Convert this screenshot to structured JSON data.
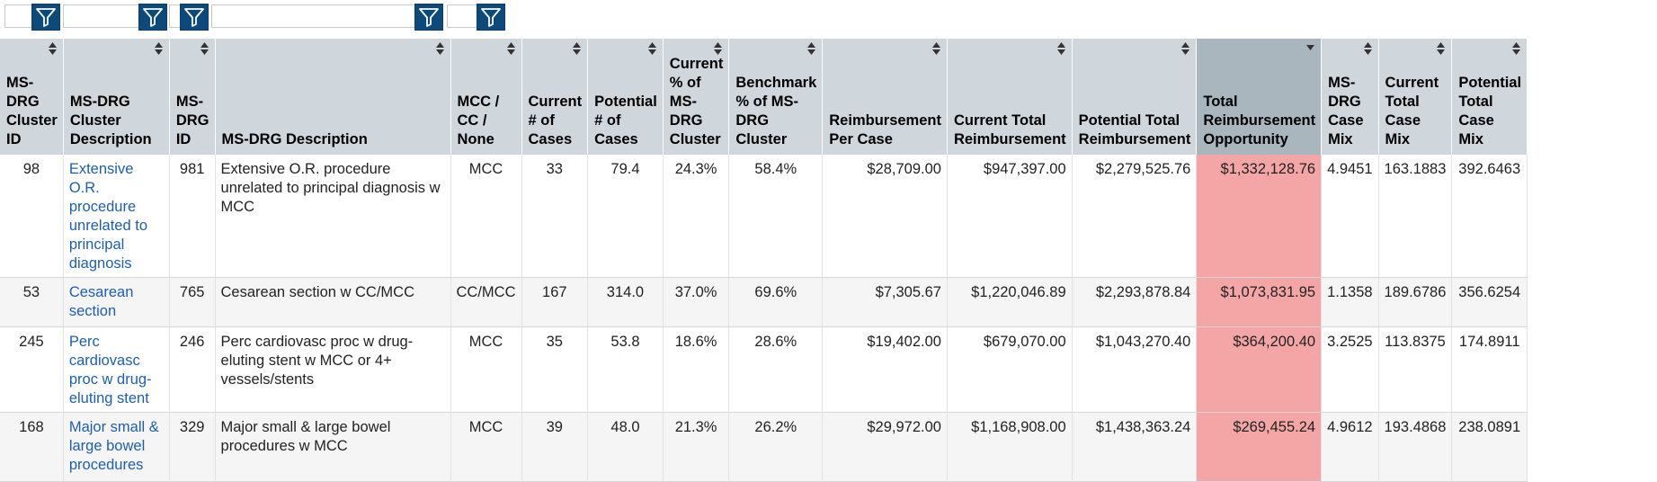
{
  "filters": [
    {
      "value": ""
    },
    {
      "value": ""
    },
    {
      "value": ""
    },
    {
      "value": ""
    },
    {
      "value": ""
    }
  ],
  "columns": [
    {
      "label": "MS-DRG Cluster ID"
    },
    {
      "label": "MS-DRG Cluster Description"
    },
    {
      "label": "MS-DRG ID"
    },
    {
      "label": "MS-DRG Description"
    },
    {
      "label": "MCC / CC / None"
    },
    {
      "label": "Current # of Cases"
    },
    {
      "label": "Potential # of Cases"
    },
    {
      "label": "Current % of MS-DRG Cluster"
    },
    {
      "label": "Benchmark % of MS-DRG Cluster"
    },
    {
      "label": "Reimbursement Per Case"
    },
    {
      "label": "Current Total Reimbursement"
    },
    {
      "label": "Potential Total Reimbursement"
    },
    {
      "label": "Total Reimbursement Opportunity"
    },
    {
      "label": "MS-DRG Case Mix"
    },
    {
      "label": "Current Total Case Mix"
    },
    {
      "label": "Potential Total Case Mix"
    }
  ],
  "rows": [
    [
      "98",
      "Extensive O.R. procedure unrelated to principal diagnosis",
      "981",
      "Extensive O.R. procedure unrelated to principal diagnosis w MCC",
      "MCC",
      "33",
      "79.4",
      "24.3%",
      "58.4%",
      "$28,709.00",
      "$947,397.00",
      "$2,279,525.76",
      "$1,332,128.76",
      "4.9451",
      "163.1883",
      "392.6463"
    ],
    [
      "53",
      "Cesarean section",
      "765",
      "Cesarean section w CC/MCC",
      "CC/MCC",
      "167",
      "314.0",
      "37.0%",
      "69.6%",
      "$7,305.67",
      "$1,220,046.89",
      "$2,293,878.84",
      "$1,073,831.95",
      "1.1358",
      "189.6786",
      "356.6254"
    ],
    [
      "245",
      "Perc cardiovasc proc w drug-eluting stent",
      "246",
      "Perc cardiovasc proc w drug-eluting stent w MCC or 4+ vessels/stents",
      "MCC",
      "35",
      "53.8",
      "18.6%",
      "28.6%",
      "$19,402.00",
      "$679,070.00",
      "$1,043,270.40",
      "$364,200.40",
      "3.2525",
      "113.8375",
      "174.8911"
    ],
    [
      "168",
      "Major small & large bowel procedures",
      "329",
      "Major small & large bowel procedures w MCC",
      "MCC",
      "39",
      "48.0",
      "21.3%",
      "26.2%",
      "$29,972.00",
      "$1,168,908.00",
      "$1,438,363.24",
      "$269,455.24",
      "4.9612",
      "193.4868",
      "238.0891"
    ]
  ],
  "sorted_column_index": 12,
  "colors": {
    "header_bg": "#cfd6dc",
    "sorted_header_bg": "#a9b6bd",
    "filter_button": "#0d4a7a",
    "link_text": "#1f5fa6",
    "highlight_cell": "#f4a6a6"
  },
  "icons": {
    "filter": "funnel-icon",
    "sort": "sort-arrows-icon",
    "sort_desc": "sort-descending-icon"
  }
}
